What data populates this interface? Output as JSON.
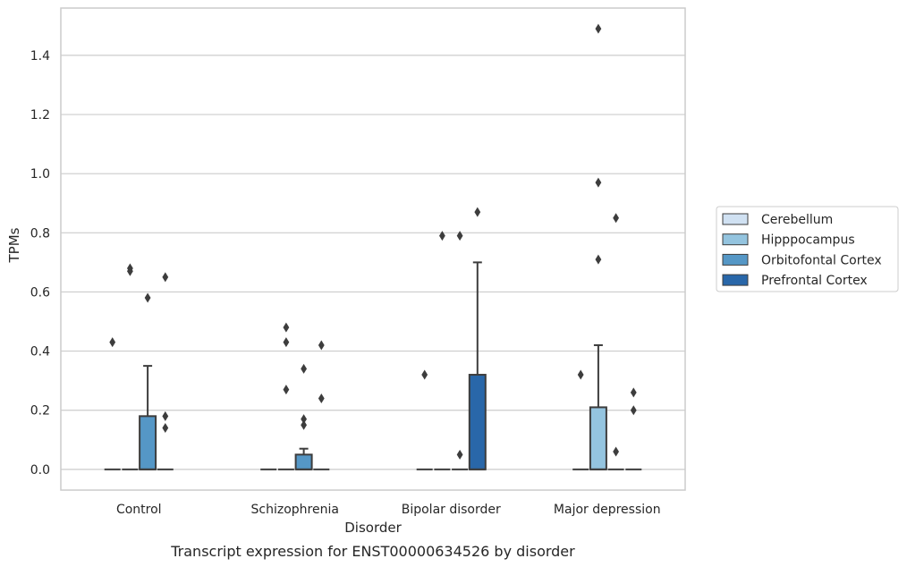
{
  "chart_data": {
    "type": "box",
    "caption": "Transcript expression for ENST00000634526 by disorder",
    "xlabel": "Disorder",
    "ylabel": "TPMs",
    "ylim": [
      -0.07,
      1.56
    ],
    "yticks": [
      "0.0",
      "0.2",
      "0.4",
      "0.6",
      "0.8",
      "1.0",
      "1.2",
      "1.4"
    ],
    "categories": [
      "Control",
      "Schizophrenia",
      "Bipolar disorder",
      "Major depression"
    ],
    "grid": "horizontal",
    "legend_position": "right",
    "series": [
      {
        "name": "Cerebellum",
        "color": "#d0e1f2",
        "boxes": [
          {
            "q1": 0,
            "median": 0,
            "q3": 0,
            "whisker_low": 0,
            "whisker_high": 0,
            "outliers": [
              0.43
            ]
          },
          {
            "q1": 0,
            "median": 0,
            "q3": 0,
            "whisker_low": 0,
            "whisker_high": 0,
            "outliers": []
          },
          {
            "q1": 0,
            "median": 0,
            "q3": 0,
            "whisker_low": 0,
            "whisker_high": 0,
            "outliers": [
              0.32
            ]
          },
          {
            "q1": 0,
            "median": 0,
            "q3": 0,
            "whisker_low": 0,
            "whisker_high": 0,
            "outliers": [
              0.32
            ]
          }
        ]
      },
      {
        "name": "Hipppocampus",
        "color": "#94c4df",
        "boxes": [
          {
            "q1": 0,
            "median": 0,
            "q3": 0,
            "whisker_low": 0,
            "whisker_high": 0,
            "outliers": [
              0.68,
              0.67
            ]
          },
          {
            "q1": 0,
            "median": 0,
            "q3": 0,
            "whisker_low": 0,
            "whisker_high": 0,
            "outliers": [
              0.48,
              0.43,
              0.27
            ]
          },
          {
            "q1": 0,
            "median": 0,
            "q3": 0,
            "whisker_low": 0,
            "whisker_high": 0,
            "outliers": [
              0.79
            ]
          },
          {
            "q1": 0,
            "median": 0,
            "q3": 0.21,
            "whisker_low": 0,
            "whisker_high": 0.42,
            "outliers": [
              1.49,
              0.97,
              0.71
            ]
          }
        ]
      },
      {
        "name": "Orbitofontal Cortex",
        "color": "#5597c6",
        "boxes": [
          {
            "q1": 0,
            "median": 0,
            "q3": 0.18,
            "whisker_low": 0,
            "whisker_high": 0.35,
            "outliers": [
              0.58
            ]
          },
          {
            "q1": 0,
            "median": 0,
            "q3": 0.05,
            "whisker_low": 0,
            "whisker_high": 0.07,
            "outliers": [
              0.34,
              0.17,
              0.15
            ]
          },
          {
            "q1": 0,
            "median": 0,
            "q3": 0,
            "whisker_low": 0,
            "whisker_high": 0,
            "outliers": [
              0.79,
              0.05
            ]
          },
          {
            "q1": 0,
            "median": 0,
            "q3": 0,
            "whisker_low": 0,
            "whisker_high": 0,
            "outliers": [
              0.85,
              0.06
            ]
          }
        ]
      },
      {
        "name": "Prefrontal Cortex",
        "color": "#2967a9",
        "boxes": [
          {
            "q1": 0,
            "median": 0,
            "q3": 0,
            "whisker_low": 0,
            "whisker_high": 0,
            "outliers": [
              0.65,
              0.18,
              0.14
            ]
          },
          {
            "q1": 0,
            "median": 0,
            "q3": 0,
            "whisker_low": 0,
            "whisker_high": 0,
            "outliers": [
              0.42,
              0.24
            ]
          },
          {
            "q1": 0,
            "median": 0,
            "q3": 0.32,
            "whisker_low": 0,
            "whisker_high": 0.7,
            "outliers": [
              0.87
            ]
          },
          {
            "q1": 0,
            "median": 0,
            "q3": 0,
            "whisker_low": 0,
            "whisker_high": 0,
            "outliers": [
              0.26,
              0.2
            ]
          }
        ]
      }
    ]
  }
}
